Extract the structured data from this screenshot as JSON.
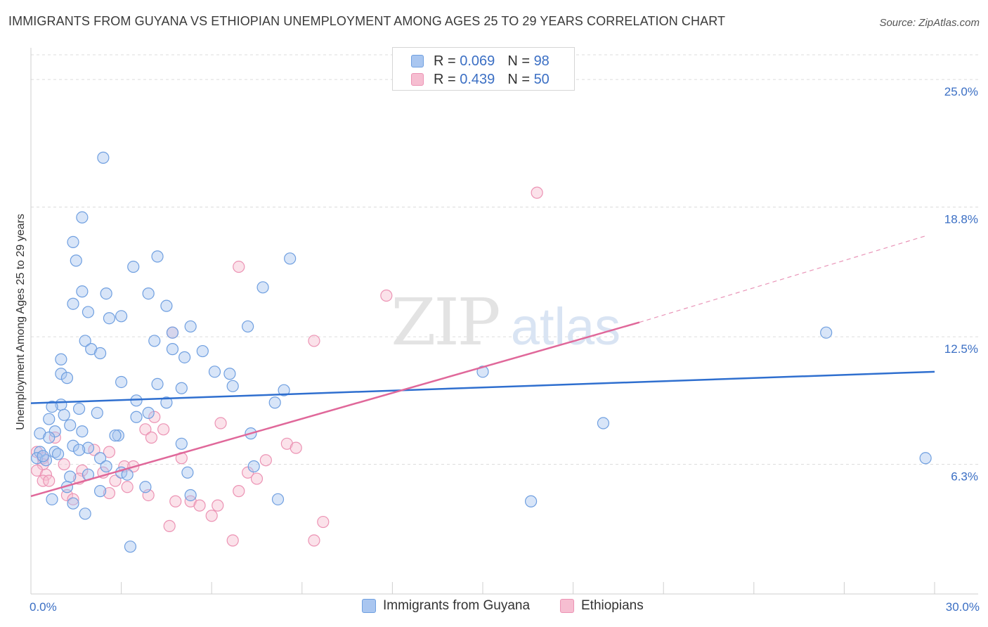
{
  "header": {
    "title": "IMMIGRANTS FROM GUYANA VS ETHIOPIAN UNEMPLOYMENT AMONG AGES 25 TO 29 YEARS CORRELATION CHART",
    "source": "Source: ZipAtlas.com"
  },
  "legend_top": {
    "rows": [
      {
        "r_label": "R =",
        "r_value": "0.069",
        "n_label": "N =",
        "n_value": "98"
      },
      {
        "r_label": "R =",
        "r_value": "0.439",
        "n_label": "N =",
        "n_value": "50"
      }
    ]
  },
  "legend_bottom": {
    "items": [
      "Immigrants from Guyana",
      "Ethiopians"
    ]
  },
  "watermark": {
    "zip": "ZIP",
    "atlas": "atlas"
  },
  "colors": {
    "guyana_fill": "#a9c6f0",
    "guyana_stroke": "#6f9fe0",
    "guyana_line": "#2f6fcf",
    "ethiopian_fill": "#f6bed1",
    "ethiopian_stroke": "#ec93b4",
    "ethiopian_line": "#e0689a",
    "tick_label": "#3b6fc4",
    "grid": "#dcdcdc"
  },
  "chart_data": {
    "type": "scatter",
    "title": "IMMIGRANTS FROM GUYANA VS ETHIOPIAN UNEMPLOYMENT AMONG AGES 25 TO 29 YEARS CORRELATION CHART",
    "xlabel": "",
    "ylabel": "Unemployment Among Ages 25 to 29 years",
    "xlim": [
      0,
      30
    ],
    "ylim": [
      0,
      26.2
    ],
    "x_tick_labels": [
      "0.0%",
      "30.0%"
    ],
    "x_tick_values": [
      0,
      30
    ],
    "y_tick_labels": [
      "6.3%",
      "12.5%",
      "18.8%",
      "25.0%"
    ],
    "y_tick_values": [
      6.3,
      12.5,
      18.8,
      25.0
    ],
    "grid": true,
    "legend_position": "top-center",
    "series": [
      {
        "name": "Immigrants from Guyana",
        "r": 0.069,
        "n": 98,
        "trend": {
          "x": [
            0,
            30
          ],
          "y": [
            9.27,
            10.8
          ]
        },
        "points": [
          [
            2.4,
            21.2
          ],
          [
            1.7,
            18.3
          ],
          [
            1.4,
            17.1
          ],
          [
            1.5,
            16.2
          ],
          [
            3.4,
            15.9
          ],
          [
            4.2,
            16.4
          ],
          [
            8.6,
            16.3
          ],
          [
            1.7,
            14.7
          ],
          [
            2.5,
            14.6
          ],
          [
            3.9,
            14.6
          ],
          [
            7.7,
            14.9
          ],
          [
            1.4,
            14.1
          ],
          [
            1.9,
            13.7
          ],
          [
            4.5,
            14.0
          ],
          [
            2.6,
            13.4
          ],
          [
            3.0,
            13.5
          ],
          [
            5.3,
            13.0
          ],
          [
            7.2,
            13.0
          ],
          [
            4.7,
            12.7
          ],
          [
            1.8,
            12.3
          ],
          [
            4.1,
            12.3
          ],
          [
            2.0,
            11.9
          ],
          [
            4.7,
            11.9
          ],
          [
            2.3,
            11.7
          ],
          [
            5.1,
            11.5
          ],
          [
            5.7,
            11.8
          ],
          [
            1.0,
            11.4
          ],
          [
            1.0,
            10.7
          ],
          [
            1.2,
            10.5
          ],
          [
            6.1,
            10.8
          ],
          [
            6.6,
            10.7
          ],
          [
            15.0,
            10.8
          ],
          [
            26.4,
            12.7
          ],
          [
            3.0,
            10.3
          ],
          [
            4.2,
            10.2
          ],
          [
            5.0,
            10.0
          ],
          [
            6.7,
            10.1
          ],
          [
            8.4,
            9.9
          ],
          [
            3.5,
            9.4
          ],
          [
            8.1,
            9.3
          ],
          [
            1.0,
            9.2
          ],
          [
            1.6,
            9.0
          ],
          [
            0.7,
            9.1
          ],
          [
            2.2,
            8.8
          ],
          [
            4.5,
            9.3
          ],
          [
            0.6,
            8.5
          ],
          [
            1.1,
            8.7
          ],
          [
            3.5,
            8.6
          ],
          [
            3.9,
            8.8
          ],
          [
            19.0,
            8.3
          ],
          [
            1.3,
            8.2
          ],
          [
            0.3,
            7.8
          ],
          [
            0.8,
            7.9
          ],
          [
            1.7,
            7.9
          ],
          [
            2.9,
            7.7
          ],
          [
            7.3,
            7.8
          ],
          [
            0.6,
            7.6
          ],
          [
            1.9,
            7.1
          ],
          [
            2.8,
            7.7
          ],
          [
            5.0,
            7.3
          ],
          [
            0.3,
            6.9
          ],
          [
            0.8,
            6.9
          ],
          [
            1.4,
            7.2
          ],
          [
            0.2,
            6.6
          ],
          [
            0.9,
            6.8
          ],
          [
            1.6,
            7.0
          ],
          [
            2.3,
            6.6
          ],
          [
            0.5,
            6.5
          ],
          [
            0.4,
            6.7
          ],
          [
            2.5,
            6.2
          ],
          [
            7.4,
            6.2
          ],
          [
            29.7,
            6.6
          ],
          [
            1.3,
            5.7
          ],
          [
            1.9,
            5.8
          ],
          [
            3.0,
            5.9
          ],
          [
            3.2,
            5.8
          ],
          [
            5.2,
            5.9
          ],
          [
            1.2,
            5.2
          ],
          [
            2.3,
            5.0
          ],
          [
            3.8,
            5.2
          ],
          [
            5.3,
            4.8
          ],
          [
            0.7,
            4.6
          ],
          [
            1.4,
            4.4
          ],
          [
            8.2,
            4.6
          ],
          [
            16.6,
            4.5
          ],
          [
            1.8,
            3.9
          ],
          [
            3.3,
            2.3
          ]
        ]
      },
      {
        "name": "Ethiopians",
        "r": 0.439,
        "n": 50,
        "trend": {
          "x": [
            0,
            20.2
          ],
          "y": [
            4.75,
            13.2
          ]
        },
        "trend_dashed": {
          "x": [
            20.2,
            29.7
          ],
          "y": [
            13.2,
            17.4
          ]
        },
        "points": [
          [
            16.8,
            19.5
          ],
          [
            6.9,
            15.9
          ],
          [
            11.8,
            14.5
          ],
          [
            9.4,
            12.3
          ],
          [
            4.7,
            12.7
          ],
          [
            4.1,
            8.6
          ],
          [
            6.3,
            8.3
          ],
          [
            3.8,
            8.0
          ],
          [
            4.4,
            8.0
          ],
          [
            0.8,
            7.6
          ],
          [
            4.0,
            7.6
          ],
          [
            8.5,
            7.3
          ],
          [
            2.1,
            7.0
          ],
          [
            8.8,
            7.1
          ],
          [
            2.6,
            6.9
          ],
          [
            0.2,
            6.9
          ],
          [
            0.4,
            6.6
          ],
          [
            5.0,
            6.6
          ],
          [
            7.8,
            6.5
          ],
          [
            0.4,
            6.3
          ],
          [
            1.1,
            6.3
          ],
          [
            3.1,
            6.2
          ],
          [
            3.4,
            6.2
          ],
          [
            1.7,
            6.0
          ],
          [
            2.4,
            5.9
          ],
          [
            7.2,
            5.9
          ],
          [
            0.2,
            6.0
          ],
          [
            0.5,
            5.8
          ],
          [
            1.6,
            5.6
          ],
          [
            2.8,
            5.5
          ],
          [
            7.5,
            5.6
          ],
          [
            0.4,
            5.5
          ],
          [
            0.6,
            5.5
          ],
          [
            3.2,
            5.2
          ],
          [
            6.9,
            5.0
          ],
          [
            2.6,
            4.9
          ],
          [
            3.9,
            4.8
          ],
          [
            1.2,
            4.8
          ],
          [
            4.8,
            4.5
          ],
          [
            5.3,
            4.5
          ],
          [
            5.6,
            4.3
          ],
          [
            6.2,
            4.3
          ],
          [
            1.4,
            4.6
          ],
          [
            6.0,
            3.8
          ],
          [
            4.6,
            3.3
          ],
          [
            9.7,
            3.5
          ],
          [
            6.7,
            2.6
          ],
          [
            9.4,
            2.6
          ]
        ]
      }
    ]
  }
}
